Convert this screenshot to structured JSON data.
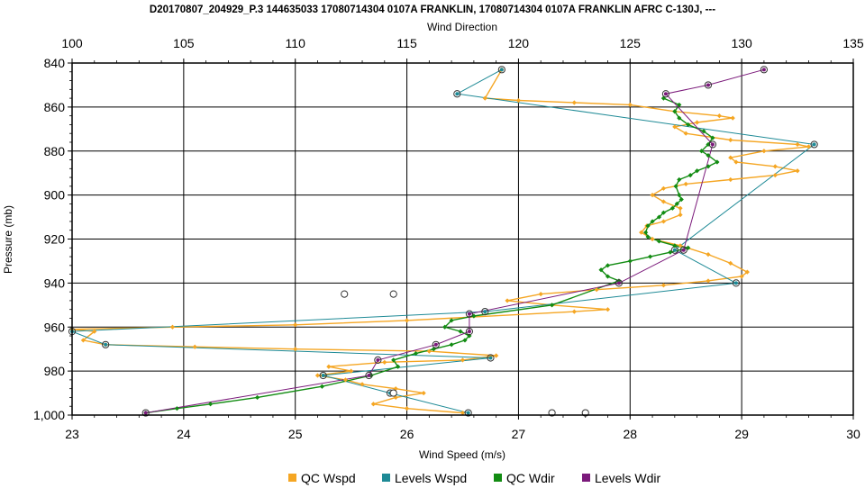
{
  "chart_data": {
    "type": "line",
    "title": "D20170807_204929_P.3 144635033 17080714304 0107A FRANKLIN, 17080714304 0107A FRANKLIN AFRC C-130J, ---",
    "top_axis": {
      "label": "Wind Direction",
      "min": 100,
      "max": 135,
      "ticks": [
        100,
        105,
        110,
        115,
        120,
        125,
        130,
        135
      ]
    },
    "bottom_axis": {
      "label": "Wind Speed (m/s)",
      "min": 23,
      "max": 30,
      "ticks": [
        23,
        24,
        25,
        26,
        27,
        28,
        29,
        30
      ]
    },
    "y_axis": {
      "label": "Pressure (mb)",
      "min": 840,
      "max": 1000,
      "inverted": true,
      "ticks": [
        840,
        860,
        880,
        900,
        920,
        940,
        960,
        980,
        1000
      ],
      "tick_labels": [
        "840",
        "860",
        "880",
        "900",
        "920",
        "940",
        "960",
        "980",
        "1,000"
      ]
    },
    "grid": true,
    "legend_position": "bottom",
    "series": [
      {
        "name": "QC Wspd",
        "axis": "bottom",
        "color": "#f5a623",
        "points": [
          [
            26.85,
            843
          ],
          [
            26.7,
            856
          ],
          [
            27.0,
            857
          ],
          [
            27.5,
            858
          ],
          [
            28.0,
            859
          ],
          [
            28.4,
            862
          ],
          [
            28.8,
            864
          ],
          [
            28.92,
            865
          ],
          [
            28.6,
            867
          ],
          [
            28.4,
            869
          ],
          [
            28.5,
            872
          ],
          [
            28.9,
            875
          ],
          [
            29.5,
            877
          ],
          [
            29.6,
            878
          ],
          [
            29.2,
            880
          ],
          [
            28.9,
            883
          ],
          [
            28.95,
            885
          ],
          [
            29.3,
            887
          ],
          [
            29.5,
            889
          ],
          [
            29.3,
            891
          ],
          [
            28.9,
            893
          ],
          [
            28.5,
            895
          ],
          [
            28.3,
            897
          ],
          [
            28.2,
            900
          ],
          [
            28.3,
            903
          ],
          [
            28.45,
            906
          ],
          [
            28.45,
            909
          ],
          [
            28.3,
            912
          ],
          [
            28.15,
            914
          ],
          [
            28.1,
            917
          ],
          [
            28.2,
            920
          ],
          [
            28.45,
            923
          ],
          [
            28.7,
            927
          ],
          [
            28.9,
            931
          ],
          [
            29.05,
            935
          ],
          [
            29.0,
            937
          ],
          [
            28.7,
            939
          ],
          [
            28.3,
            941
          ],
          [
            27.7,
            943
          ],
          [
            27.2,
            945
          ],
          [
            26.9,
            948
          ],
          [
            27.3,
            950
          ],
          [
            27.8,
            952
          ],
          [
            27.5,
            953
          ],
          [
            26.0,
            957
          ],
          [
            25.0,
            959
          ],
          [
            23.9,
            960
          ],
          [
            23.0,
            961
          ],
          [
            23.2,
            962
          ],
          [
            23.1,
            966
          ],
          [
            23.3,
            968
          ],
          [
            24.1,
            969
          ],
          [
            25.0,
            970
          ],
          [
            26.2,
            971
          ],
          [
            26.8,
            973
          ],
          [
            26.5,
            975
          ],
          [
            25.8,
            976
          ],
          [
            25.3,
            978
          ],
          [
            25.5,
            980
          ],
          [
            25.2,
            982
          ],
          [
            25.45,
            984
          ],
          [
            25.6,
            986
          ],
          [
            25.9,
            988
          ],
          [
            26.15,
            990
          ],
          [
            25.9,
            992
          ],
          [
            25.7,
            995
          ],
          [
            26.0,
            997
          ],
          [
            26.5,
            999
          ]
        ]
      },
      {
        "name": "Levels Wspd",
        "axis": "bottom",
        "color": "#1e8a96",
        "points": [
          [
            26.85,
            843
          ],
          [
            26.45,
            854
          ],
          [
            29.65,
            877
          ],
          [
            28.4,
            925
          ],
          [
            28.95,
            940
          ],
          [
            26.7,
            953
          ],
          [
            23.0,
            962
          ],
          [
            23.3,
            968
          ],
          [
            26.75,
            974
          ],
          [
            25.25,
            982
          ],
          [
            25.85,
            990
          ],
          [
            26.55,
            999
          ]
        ]
      },
      {
        "name": "QC Wdir",
        "axis": "top",
        "color": "#128c12",
        "points": [
          [
            126.5,
            856
          ],
          [
            127.2,
            859
          ],
          [
            127.0,
            862
          ],
          [
            127.2,
            865
          ],
          [
            127.6,
            868
          ],
          [
            128.3,
            871
          ],
          [
            128.7,
            874
          ],
          [
            128.5,
            877
          ],
          [
            128.2,
            880
          ],
          [
            128.5,
            882
          ],
          [
            128.9,
            885
          ],
          [
            128.5,
            887
          ],
          [
            128.0,
            889
          ],
          [
            127.7,
            891
          ],
          [
            127.2,
            893
          ],
          [
            127.05,
            896
          ],
          [
            127.2,
            900
          ],
          [
            127.3,
            902
          ],
          [
            127.1,
            904
          ],
          [
            126.9,
            906
          ],
          [
            126.5,
            908
          ],
          [
            126.3,
            910
          ],
          [
            126.0,
            912
          ],
          [
            125.8,
            914
          ],
          [
            125.7,
            917
          ],
          [
            125.8,
            919
          ],
          [
            126.3,
            921
          ],
          [
            127.0,
            923
          ],
          [
            127.6,
            924
          ],
          [
            126.8,
            926
          ],
          [
            125.9,
            928
          ],
          [
            125.0,
            930
          ],
          [
            124.0,
            932
          ],
          [
            123.7,
            934
          ],
          [
            124.0,
            937
          ],
          [
            124.5,
            939
          ],
          [
            121.5,
            950
          ],
          [
            118.0,
            955
          ],
          [
            117.0,
            957
          ],
          [
            116.7,
            960
          ],
          [
            117.4,
            962
          ],
          [
            117.8,
            964
          ],
          [
            117.6,
            966
          ],
          [
            117.0,
            968
          ],
          [
            116.2,
            970
          ],
          [
            115.4,
            972
          ],
          [
            114.4,
            975
          ],
          [
            114.6,
            978
          ],
          [
            113.4,
            982
          ],
          [
            111.2,
            987
          ],
          [
            108.3,
            992
          ],
          [
            106.2,
            995
          ],
          [
            104.7,
            997
          ],
          [
            103.3,
            999
          ]
        ]
      },
      {
        "name": "Levels Wdir",
        "axis": "top",
        "color": "#7b1a7b",
        "points": [
          [
            131.0,
            843
          ],
          [
            128.5,
            850
          ],
          [
            126.6,
            854
          ],
          [
            128.7,
            877
          ],
          [
            127.4,
            925
          ],
          [
            124.5,
            940
          ],
          [
            117.8,
            954
          ],
          [
            117.8,
            962
          ],
          [
            116.3,
            968
          ],
          [
            113.7,
            975
          ],
          [
            113.3,
            982
          ],
          [
            103.3,
            999
          ]
        ]
      }
    ],
    "extra_points": [
      {
        "axis": "top",
        "points": [
          [
            112.2,
            945
          ],
          [
            114.4,
            945
          ],
          [
            114.4,
            990
          ],
          [
            121.5,
            999
          ],
          [
            123.0,
            999
          ]
        ]
      }
    ]
  }
}
